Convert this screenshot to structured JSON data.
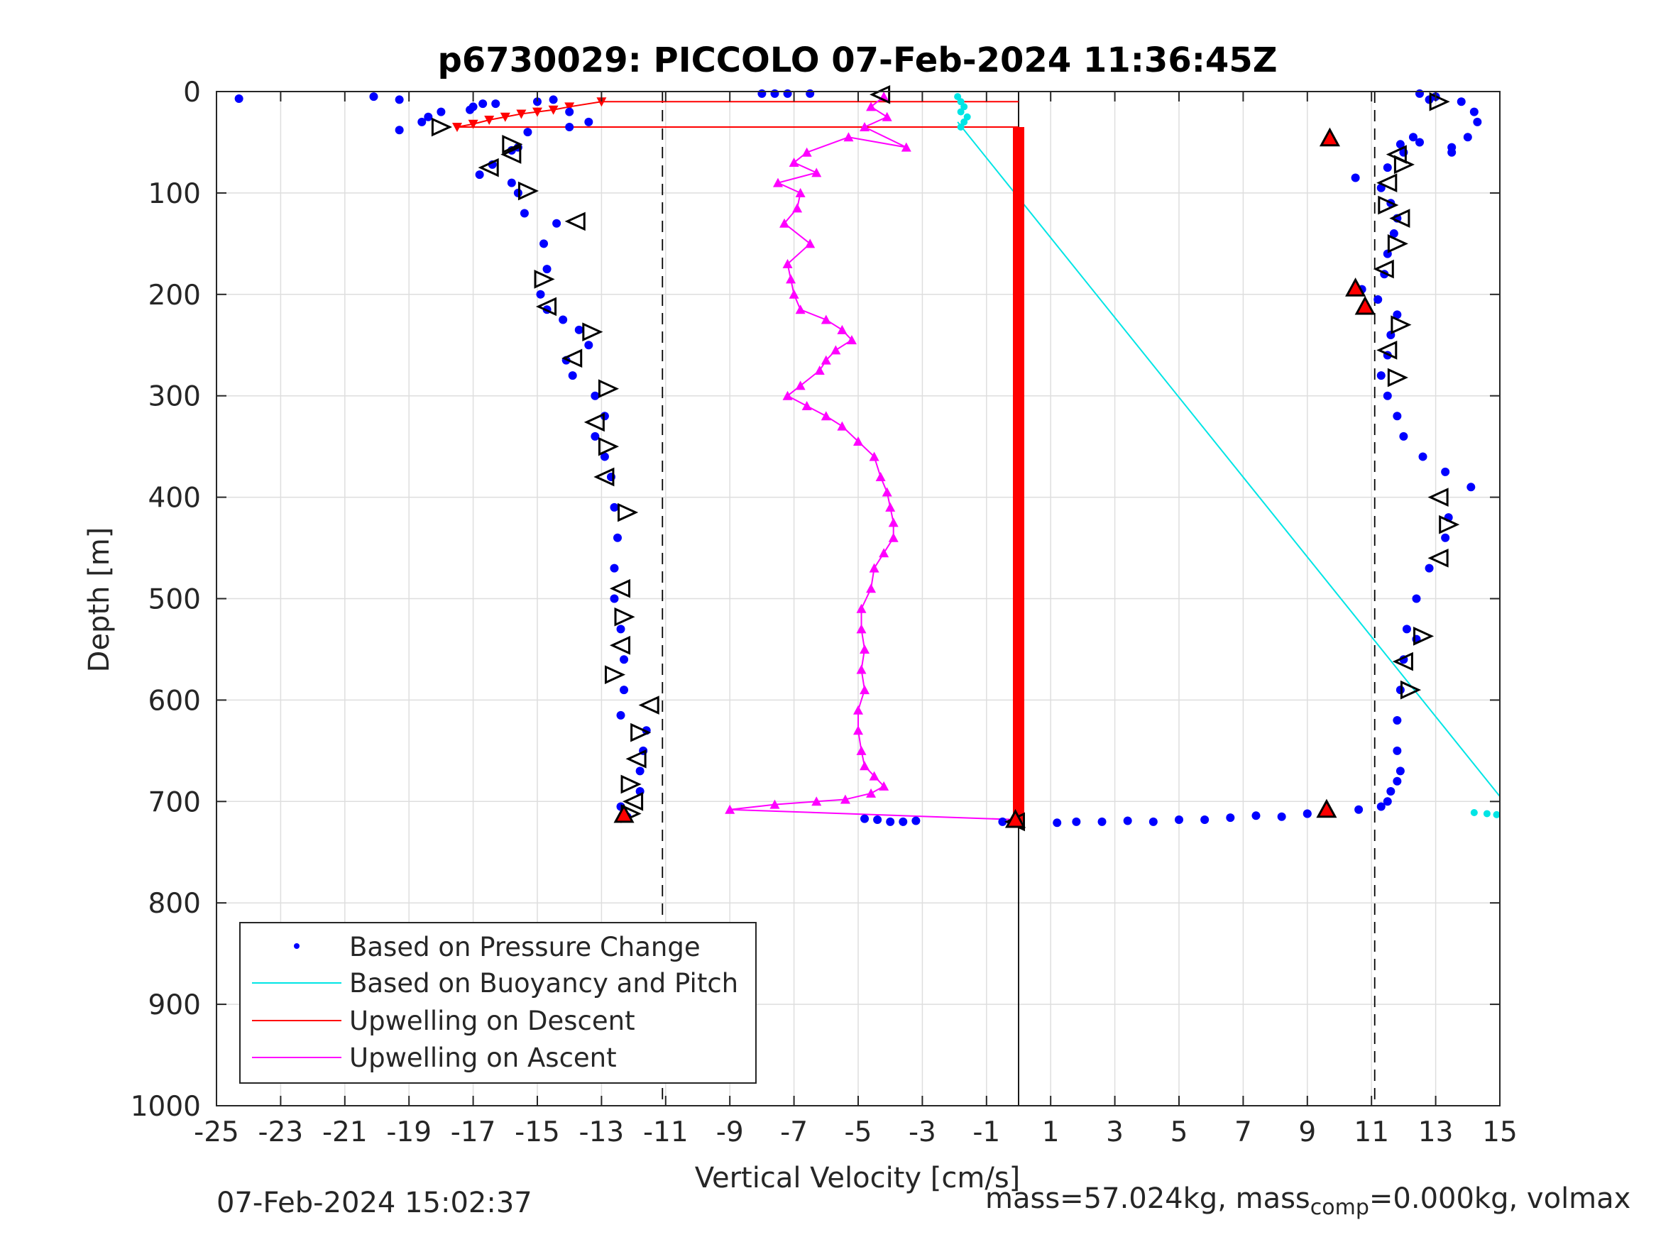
{
  "chart_data": {
    "type": "scatter",
    "title": "p6730029: PICCOLO 07-Feb-2024 11:36:45Z",
    "xlabel": "Vertical Velocity [cm/s]",
    "ylabel": "Depth [m]",
    "xlim": [
      -25,
      15
    ],
    "ylim": [
      0,
      1000
    ],
    "y_reversed": true,
    "grid": true,
    "xticks": [
      -25,
      -23,
      -21,
      -19,
      -17,
      -15,
      -13,
      -11,
      -9,
      -7,
      -5,
      -3,
      -1,
      1,
      3,
      5,
      7,
      9,
      11,
      13,
      15
    ],
    "yticks": [
      0,
      100,
      200,
      300,
      400,
      500,
      600,
      700,
      800,
      900,
      1000
    ],
    "legend_position": "bottom-left",
    "legend": [
      {
        "label": "Based on Pressure Change",
        "style": "dot",
        "color": "#0000ff"
      },
      {
        "label": "Based on Buoyancy and Pitch",
        "style": "line",
        "color": "#00e5e5"
      },
      {
        "label": "Upwelling on Descent",
        "style": "line",
        "color": "#ff0000"
      },
      {
        "label": "Upwelling on Ascent",
        "style": "line",
        "color": "#ff00ff"
      }
    ],
    "reference_lines": [
      {
        "x": -11.1,
        "style": "dashed",
        "color": "#000000"
      },
      {
        "x": 11.1,
        "style": "dashed",
        "color": "#000000"
      },
      {
        "x": 0,
        "style": "solid",
        "color": "#000000",
        "y_range": [
          0,
          1000
        ]
      }
    ],
    "series": {
      "pressure_descent": {
        "color": "#0000ff",
        "x": [
          -24.3,
          -20.1,
          -19.3,
          -19.3,
          -18.6,
          -18.0,
          -17.0,
          -16.3,
          -15.6,
          -16.4,
          -16.8,
          -15.8,
          -15.6,
          -15.4,
          -14.4,
          -14.8,
          -14.7,
          -14.9,
          -14.7,
          -14.2,
          -13.7,
          -13.4,
          -14.1,
          -13.9,
          -13.2,
          -12.9,
          -13.2,
          -12.9,
          -12.7,
          -12.6,
          -12.5,
          -12.6,
          -12.6,
          -12.4,
          -12.3,
          -12.3,
          -12.4,
          -11.6,
          -11.7,
          -11.8,
          -11.8,
          -12.4,
          -12.2
        ],
        "y": [
          7,
          5,
          8,
          38,
          30,
          20,
          15,
          12,
          55,
          72,
          82,
          90,
          100,
          120,
          130,
          150,
          175,
          200,
          215,
          225,
          235,
          250,
          265,
          280,
          300,
          320,
          340,
          360,
          380,
          410,
          440,
          470,
          500,
          530,
          560,
          590,
          615,
          630,
          650,
          670,
          690,
          705,
          715
        ]
      },
      "pressure_ascent": {
        "color": "#0000ff",
        "x": [
          13.0,
          13.8,
          14.2,
          14.3,
          14.0,
          13.5,
          12.5,
          12.0,
          11.5,
          10.5,
          11.3,
          11.6,
          11.8,
          11.7,
          11.5,
          11.4,
          10.7,
          11.2,
          11.8,
          11.6,
          11.5,
          11.3,
          11.5,
          11.8,
          12.0,
          12.6,
          13.3,
          14.1,
          13.4,
          13.3,
          12.8,
          12.4,
          12.1,
          12.0,
          12.4,
          11.9,
          11.8,
          11.8,
          11.9,
          11.8,
          11.6,
          11.5,
          11.3,
          10.6,
          9.0
        ],
        "y": [
          5,
          10,
          20,
          30,
          45,
          55,
          50,
          60,
          75,
          85,
          95,
          110,
          125,
          140,
          160,
          180,
          195,
          205,
          220,
          240,
          260,
          280,
          300,
          320,
          340,
          360,
          375,
          390,
          420,
          440,
          470,
          500,
          530,
          560,
          540,
          590,
          620,
          650,
          670,
          680,
          690,
          700,
          705,
          708,
          712
        ]
      },
      "pressure_bottom": {
        "color": "#0000ff",
        "x": [
          -4.8,
          -4.4,
          -4.0,
          -3.6,
          -3.2,
          -0.5,
          1.2,
          1.8,
          2.6,
          3.4,
          4.2,
          5.0,
          5.8,
          6.6,
          7.4,
          8.2,
          9.0,
          9.6,
          -7.6,
          -7.2,
          -8.0,
          -6.5
        ],
        "y": [
          717,
          718,
          720,
          720,
          719,
          720,
          721,
          720,
          720,
          719,
          720,
          718,
          718,
          716,
          714,
          715,
          712,
          710,
          2,
          2,
          2,
          2
        ]
      },
      "pressure_top_misc": {
        "color": "#0000ff",
        "x": [
          -14.0,
          -18.4,
          -17.1,
          -16.7,
          -15.0,
          -14.5,
          -15.3,
          -15.8,
          -14.0,
          -13.4,
          12.5,
          12.8,
          12.3,
          11.9,
          13.5
        ],
        "y": [
          20,
          25,
          18,
          12,
          10,
          8,
          40,
          58,
          35,
          30,
          2,
          8,
          45,
          52,
          60
        ]
      },
      "buoyancy_pitch_line": {
        "color": "#00e5e5",
        "x": [
          -1.9,
          15.0
        ],
        "y": [
          30,
          695
        ]
      },
      "buoyancy_pitch_dots": {
        "color": "#00e5e5",
        "x": [
          -1.9,
          -1.8,
          -1.7,
          -1.8,
          -1.6,
          -1.7,
          -1.8,
          14.2,
          14.6,
          14.9
        ],
        "y": [
          5,
          10,
          15,
          20,
          25,
          30,
          35,
          711,
          712,
          713
        ]
      },
      "upwelling_descent": {
        "color": "#ff0000",
        "x": [
          -13.0,
          -14.0,
          -14.5,
          -15.0,
          -15.5,
          -16.0,
          -16.5,
          -17.0,
          -17.5
        ],
        "y": [
          10,
          15,
          18,
          20,
          22,
          25,
          28,
          32,
          35
        ],
        "bar_x": 0.0,
        "bar_y_range": [
          35,
          720
        ]
      },
      "upwelling_ascent": {
        "color": "#ff00ff",
        "x": [
          -4.2,
          -4.6,
          -4.1,
          -4.8,
          -3.5,
          -5.3,
          -6.6,
          -7.0,
          -6.3,
          -7.5,
          -6.8,
          -6.9,
          -7.3,
          -6.5,
          -7.2,
          -7.1,
          -7.0,
          -6.8,
          -6.0,
          -5.5,
          -5.2,
          -5.7,
          -6.0,
          -6.2,
          -6.8,
          -7.2,
          -6.6,
          -6.0,
          -5.5,
          -5.0,
          -4.5,
          -4.3,
          -4.1,
          -4.0,
          -3.9,
          -3.9,
          -4.2,
          -4.5,
          -4.6,
          -4.9,
          -4.9,
          -4.8,
          -4.9,
          -4.8,
          -5.0,
          -5.0,
          -4.9,
          -4.8,
          -4.5,
          -4.2,
          -4.6,
          -5.4,
          -6.3,
          -7.6,
          -9.0
        ],
        "y": [
          5,
          15,
          25,
          35,
          55,
          45,
          60,
          70,
          80,
          90,
          100,
          115,
          130,
          150,
          170,
          185,
          200,
          215,
          225,
          235,
          245,
          255,
          265,
          275,
          290,
          300,
          310,
          320,
          330,
          345,
          360,
          380,
          395,
          410,
          425,
          440,
          455,
          470,
          490,
          510,
          530,
          550,
          570,
          590,
          610,
          630,
          650,
          665,
          675,
          685,
          692,
          698,
          700,
          703,
          708
        ]
      },
      "triangle_markers": {
        "style": "open-triangle",
        "color": "#000000",
        "x": [
          -4.3,
          -18.0,
          -16.5,
          -15.8,
          -15.8,
          -15.3,
          -13.8,
          -14.8,
          -14.7,
          -13.3,
          -13.9,
          -12.8,
          -13.2,
          -12.8,
          -12.9,
          -12.2,
          -12.4,
          -12.3,
          -12.4,
          -12.6,
          -11.5,
          -11.8,
          -11.9,
          -12.1,
          -12.0,
          -12.1,
          -0.1,
          13.1,
          11.8,
          12.0,
          11.5,
          11.5,
          11.9,
          11.8,
          11.4,
          11.9,
          11.5,
          11.8,
          13.1,
          13.4,
          13.1,
          12.6,
          12.0,
          12.2
        ],
        "y": [
          3,
          35,
          75,
          52,
          62,
          98,
          128,
          185,
          212,
          237,
          263,
          293,
          326,
          350,
          380,
          415,
          490,
          518,
          546,
          575,
          605,
          632,
          658,
          683,
          700,
          712,
          720,
          10,
          62,
          72,
          90,
          112,
          125,
          150,
          175,
          230,
          255,
          282,
          400,
          427,
          460,
          537,
          562,
          590
        ]
      },
      "red_filled_markers": {
        "style": "filled-triangle",
        "color": "#ff0000",
        "x": [
          -12.3,
          -0.1,
          9.6,
          10.5,
          10.8,
          9.7
        ],
        "y": [
          713,
          718,
          708,
          194,
          212,
          46
        ]
      }
    }
  },
  "footer": {
    "timestamp": "07-Feb-2024 15:02:37",
    "mass_text_a": "mass=57.024kg, mass",
    "mass_text_sub": "comp",
    "mass_text_b": "=0.000kg, volmax"
  }
}
